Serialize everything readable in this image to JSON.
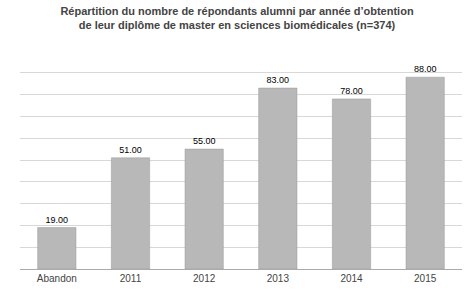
{
  "chart_data": {
    "type": "bar",
    "title": "Répartition du nombre de répondants alumni par année d’obtention\nde leur diplôme de master en sciences biomédicales (n=374)",
    "categories": [
      "Abandon",
      "2011",
      "2012",
      "2013",
      "2014",
      "2015"
    ],
    "values": [
      19,
      51,
      55,
      83,
      78,
      88
    ],
    "value_labels": [
      "19.00",
      "51.00",
      "55.00",
      "83.00",
      "78.00",
      "88.00"
    ],
    "data_labels": true,
    "color": "#b8b8b8",
    "ylim": [
      0,
      100
    ],
    "yticks": [
      0,
      10,
      20,
      30,
      40,
      50,
      60,
      70,
      80,
      90,
      100
    ],
    "grid": true,
    "tick_labels": "x"
  }
}
